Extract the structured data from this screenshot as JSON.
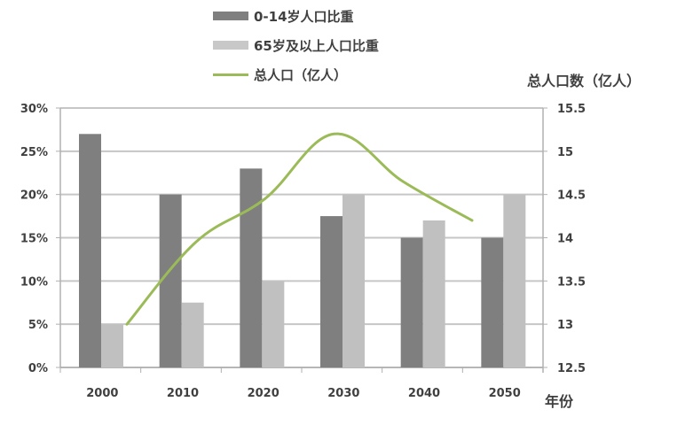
{
  "chart_data": {
    "type": "bar+line",
    "categories": [
      "2000",
      "2010",
      "2020",
      "2030",
      "2040",
      "2050"
    ],
    "series": [
      {
        "name": "0-14岁人口比重",
        "type": "bar",
        "axis": "left",
        "color": "#7f7f7f",
        "values": [
          27,
          20,
          23,
          17.5,
          15,
          15
        ]
      },
      {
        "name": "65岁及以上人口比重",
        "type": "bar",
        "axis": "left",
        "color": "#c0c0c0",
        "values": [
          5,
          7.5,
          10,
          20,
          17,
          20
        ]
      },
      {
        "name": "总人口（亿人）",
        "type": "line",
        "axis": "right",
        "color": "#9bbb59",
        "values": [
          13.0,
          13.95,
          14.45,
          15.2,
          14.65,
          14.2
        ]
      }
    ],
    "left_axis": {
      "ticks": [
        "0%",
        "5%",
        "10%",
        "15%",
        "20%",
        "25%",
        "30%"
      ],
      "ylim": [
        0,
        30
      ]
    },
    "right_axis": {
      "title": "总人口数（亿人）",
      "ticks": [
        "12.5",
        "13",
        "13.5",
        "14",
        "14.5",
        "15",
        "15.5"
      ],
      "ylim": [
        12.5,
        15.5
      ]
    },
    "xlabel": "年份",
    "grid": true,
    "legend_position": "top"
  },
  "legend": {
    "items": [
      {
        "label": "0-14岁人口比重"
      },
      {
        "label": "65岁及以上人口比重"
      },
      {
        "label": "总人口（亿人）"
      }
    ]
  },
  "axes": {
    "right_title": "总人口数（亿人）",
    "x_title": "年份"
  }
}
